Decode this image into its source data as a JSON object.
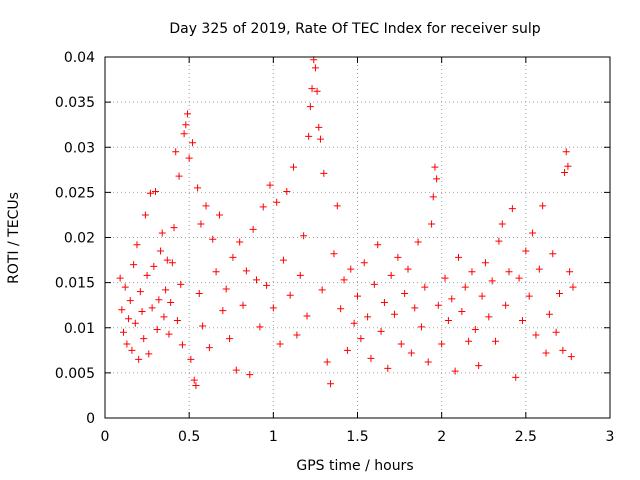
{
  "chart_data": {
    "type": "scatter",
    "title": "Day 325 of 2019, Rate Of TEC Index for receiver sulp",
    "xlabel": "GPS time / hours",
    "ylabel": "ROTI / TECUs",
    "xlim": [
      0,
      3
    ],
    "ylim": [
      0,
      0.04
    ],
    "xticks": [
      0,
      0.5,
      1,
      1.5,
      2,
      2.5,
      3
    ],
    "xtick_labels": [
      "0",
      "0.5",
      "1",
      "1.5",
      "2",
      "2.5",
      "3"
    ],
    "yticks": [
      0,
      0.005,
      0.01,
      0.015,
      0.02,
      0.025,
      0.03,
      0.035,
      0.04
    ],
    "ytick_labels": [
      "0",
      "0.005",
      "0.01",
      "0.015",
      "0.02",
      "0.025",
      "0.03",
      "0.035",
      "0.04"
    ],
    "grid": true,
    "marker": "+",
    "series_color": "#ff0000",
    "points": [
      [
        0.09,
        0.0155
      ],
      [
        0.1,
        0.012
      ],
      [
        0.11,
        0.0095
      ],
      [
        0.12,
        0.0145
      ],
      [
        0.13,
        0.0082
      ],
      [
        0.14,
        0.011
      ],
      [
        0.15,
        0.013
      ],
      [
        0.16,
        0.0075
      ],
      [
        0.17,
        0.017
      ],
      [
        0.18,
        0.0105
      ],
      [
        0.19,
        0.0192
      ],
      [
        0.2,
        0.0065
      ],
      [
        0.21,
        0.014
      ],
      [
        0.22,
        0.0118
      ],
      [
        0.23,
        0.0088
      ],
      [
        0.24,
        0.0225
      ],
      [
        0.25,
        0.0158
      ],
      [
        0.26,
        0.0071
      ],
      [
        0.27,
        0.0249
      ],
      [
        0.28,
        0.0122
      ],
      [
        0.29,
        0.0168
      ],
      [
        0.3,
        0.0251
      ],
      [
        0.31,
        0.0098
      ],
      [
        0.32,
        0.0131
      ],
      [
        0.33,
        0.0185
      ],
      [
        0.34,
        0.0205
      ],
      [
        0.35,
        0.0112
      ],
      [
        0.36,
        0.0142
      ],
      [
        0.37,
        0.0175
      ],
      [
        0.38,
        0.0093
      ],
      [
        0.39,
        0.0128
      ],
      [
        0.4,
        0.0172
      ],
      [
        0.41,
        0.0211
      ],
      [
        0.42,
        0.0295
      ],
      [
        0.43,
        0.0108
      ],
      [
        0.44,
        0.0268
      ],
      [
        0.45,
        0.0148
      ],
      [
        0.46,
        0.0081
      ],
      [
        0.47,
        0.0315
      ],
      [
        0.48,
        0.0325
      ],
      [
        0.49,
        0.0337
      ],
      [
        0.5,
        0.0288
      ],
      [
        0.51,
        0.0065
      ],
      [
        0.52,
        0.0305
      ],
      [
        0.53,
        0.0042
      ],
      [
        0.54,
        0.0036
      ],
      [
        0.55,
        0.0255
      ],
      [
        0.56,
        0.0138
      ],
      [
        0.57,
        0.0215
      ],
      [
        0.58,
        0.0102
      ],
      [
        0.6,
        0.0235
      ],
      [
        0.62,
        0.0078
      ],
      [
        0.64,
        0.0198
      ],
      [
        0.66,
        0.0162
      ],
      [
        0.68,
        0.0225
      ],
      [
        0.7,
        0.0119
      ],
      [
        0.72,
        0.0143
      ],
      [
        0.74,
        0.0088
      ],
      [
        0.76,
        0.0178
      ],
      [
        0.78,
        0.0053
      ],
      [
        0.8,
        0.0195
      ],
      [
        0.82,
        0.0125
      ],
      [
        0.84,
        0.0163
      ],
      [
        0.86,
        0.0048
      ],
      [
        0.88,
        0.0209
      ],
      [
        0.9,
        0.0153
      ],
      [
        0.92,
        0.0101
      ],
      [
        0.94,
        0.0234
      ],
      [
        0.96,
        0.0147
      ],
      [
        0.98,
        0.0258
      ],
      [
        1.0,
        0.0122
      ],
      [
        1.02,
        0.0239
      ],
      [
        1.04,
        0.0082
      ],
      [
        1.06,
        0.0175
      ],
      [
        1.08,
        0.0251
      ],
      [
        1.1,
        0.0136
      ],
      [
        1.12,
        0.0278
      ],
      [
        1.14,
        0.0092
      ],
      [
        1.16,
        0.0158
      ],
      [
        1.18,
        0.0202
      ],
      [
        1.2,
        0.0113
      ],
      [
        1.21,
        0.0312
      ],
      [
        1.22,
        0.0345
      ],
      [
        1.23,
        0.0365
      ],
      [
        1.24,
        0.0397
      ],
      [
        1.25,
        0.0388
      ],
      [
        1.26,
        0.0362
      ],
      [
        1.27,
        0.0322
      ],
      [
        1.28,
        0.0309
      ],
      [
        1.29,
        0.0142
      ],
      [
        1.3,
        0.0271
      ],
      [
        1.32,
        0.0062
      ],
      [
        1.34,
        0.0038
      ],
      [
        1.36,
        0.0182
      ],
      [
        1.38,
        0.0235
      ],
      [
        1.4,
        0.0121
      ],
      [
        1.42,
        0.0153
      ],
      [
        1.44,
        0.0075
      ],
      [
        1.46,
        0.0165
      ],
      [
        1.48,
        0.0105
      ],
      [
        1.5,
        0.0135
      ],
      [
        1.52,
        0.0088
      ],
      [
        1.54,
        0.0172
      ],
      [
        1.56,
        0.0112
      ],
      [
        1.58,
        0.0066
      ],
      [
        1.6,
        0.0148
      ],
      [
        1.62,
        0.0192
      ],
      [
        1.64,
        0.0096
      ],
      [
        1.66,
        0.0128
      ],
      [
        1.68,
        0.0055
      ],
      [
        1.7,
        0.0158
      ],
      [
        1.72,
        0.0115
      ],
      [
        1.74,
        0.0178
      ],
      [
        1.76,
        0.0082
      ],
      [
        1.78,
        0.0138
      ],
      [
        1.8,
        0.0165
      ],
      [
        1.82,
        0.0072
      ],
      [
        1.84,
        0.0122
      ],
      [
        1.86,
        0.0195
      ],
      [
        1.88,
        0.0101
      ],
      [
        1.9,
        0.0145
      ],
      [
        1.92,
        0.0062
      ],
      [
        1.94,
        0.0215
      ],
      [
        1.95,
        0.0245
      ],
      [
        1.96,
        0.0278
      ],
      [
        1.97,
        0.0265
      ],
      [
        1.98,
        0.0125
      ],
      [
        2.0,
        0.0082
      ],
      [
        2.02,
        0.0155
      ],
      [
        2.04,
        0.0108
      ],
      [
        2.06,
        0.0132
      ],
      [
        2.08,
        0.0052
      ],
      [
        2.1,
        0.0178
      ],
      [
        2.12,
        0.0118
      ],
      [
        2.14,
        0.0145
      ],
      [
        2.16,
        0.0085
      ],
      [
        2.18,
        0.0162
      ],
      [
        2.2,
        0.0098
      ],
      [
        2.22,
        0.0058
      ],
      [
        2.24,
        0.0135
      ],
      [
        2.26,
        0.0172
      ],
      [
        2.28,
        0.0112
      ],
      [
        2.3,
        0.0152
      ],
      [
        2.32,
        0.0085
      ],
      [
        2.34,
        0.0196
      ],
      [
        2.36,
        0.0215
      ],
      [
        2.38,
        0.0125
      ],
      [
        2.4,
        0.0162
      ],
      [
        2.42,
        0.0232
      ],
      [
        2.44,
        0.0045
      ],
      [
        2.46,
        0.0155
      ],
      [
        2.48,
        0.0108
      ],
      [
        2.5,
        0.0185
      ],
      [
        2.52,
        0.0135
      ],
      [
        2.54,
        0.0205
      ],
      [
        2.56,
        0.0092
      ],
      [
        2.58,
        0.0165
      ],
      [
        2.6,
        0.0235
      ],
      [
        2.62,
        0.0072
      ],
      [
        2.64,
        0.0115
      ],
      [
        2.66,
        0.0182
      ],
      [
        2.68,
        0.0095
      ],
      [
        2.7,
        0.0138
      ],
      [
        2.72,
        0.0075
      ],
      [
        2.73,
        0.0272
      ],
      [
        2.74,
        0.0295
      ],
      [
        2.75,
        0.0279
      ],
      [
        2.76,
        0.0162
      ],
      [
        2.77,
        0.0068
      ],
      [
        2.78,
        0.0145
      ]
    ]
  }
}
